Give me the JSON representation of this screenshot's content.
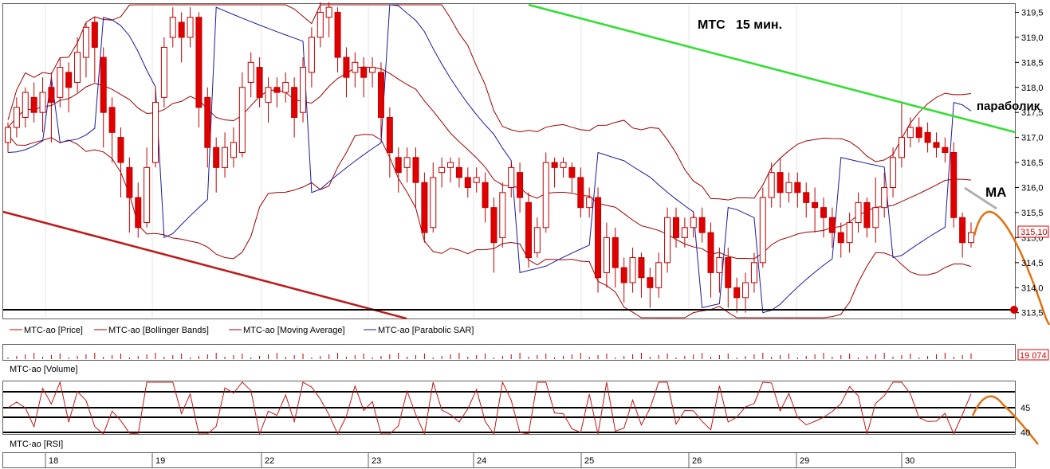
{
  "chart_data": {
    "type": "candlestick",
    "title": "МТС   15 мин.",
    "annotations": {
      "parabolic": "параболик",
      "ma": "МА"
    },
    "price_axis": {
      "ticks": [
        "319,5",
        "319,0",
        "318,5",
        "318,0",
        "317,5",
        "317,0",
        "316,5",
        "316,0",
        "315,5",
        "315,0",
        "314,5",
        "314,0",
        "313,5"
      ],
      "range": [
        313.4,
        319.65
      ],
      "last_price_label": "315,10",
      "last_price": 315.1,
      "support_level": 313.5
    },
    "legend": [
      {
        "name": "МТС-ао [Price]",
        "color": "#d40000"
      },
      {
        "name": "МТС-ао [Bollinger Bands]",
        "color": "#a00000"
      },
      {
        "name": "МТС-ао [Moving Average]",
        "color": "#a00000"
      },
      {
        "name": "МТС-ао [Parabolic SAR]",
        "color": "#1a1aa0"
      }
    ],
    "volume": {
      "label": "МТС-ао [Volume]",
      "last_label": "19 074"
    },
    "rsi": {
      "label": "МТС-ао [RSI]",
      "ticks": [
        "45",
        "40"
      ]
    },
    "x_axis": {
      "labels": [
        "18",
        "19",
        "22",
        "23",
        "24",
        "25",
        "26",
        "29",
        "30"
      ]
    },
    "candles": [
      [
        316.9,
        317.2,
        316.7,
        317.3
      ],
      [
        317.2,
        317.6,
        317.0,
        317.8
      ],
      [
        317.4,
        317.9,
        317.2,
        318.0
      ],
      [
        317.8,
        317.5,
        317.3,
        318.1
      ],
      [
        317.5,
        317.9,
        317.1,
        318.2
      ],
      [
        318.0,
        317.7,
        316.9,
        318.3
      ],
      [
        317.8,
        318.4,
        317.6,
        318.6
      ],
      [
        318.3,
        318.0,
        317.5,
        318.5
      ],
      [
        318.1,
        318.7,
        317.9,
        319.0
      ],
      [
        318.6,
        319.2,
        318.2,
        319.3
      ],
      [
        319.3,
        318.8,
        318.1,
        319.4
      ],
      [
        318.6,
        317.5,
        316.8,
        318.8
      ],
      [
        317.6,
        317.1,
        316.5,
        317.8
      ],
      [
        317.0,
        316.5,
        315.8,
        317.2
      ],
      [
        316.4,
        315.8,
        315.1,
        316.6
      ],
      [
        315.8,
        315.2,
        315.0,
        316.1
      ],
      [
        315.3,
        316.4,
        315.2,
        316.8
      ],
      [
        316.5,
        317.7,
        316.4,
        318.0
      ],
      [
        317.8,
        318.8,
        317.6,
        319.0
      ],
      [
        319.0,
        319.4,
        318.8,
        319.6
      ],
      [
        319.3,
        319.0,
        318.5,
        319.5
      ],
      [
        319.0,
        319.4,
        318.8,
        319.6
      ],
      [
        319.4,
        317.6,
        317.2,
        319.5
      ],
      [
        317.8,
        316.8,
        316.4,
        318.0
      ],
      [
        316.8,
        316.4,
        315.9,
        317.0
      ],
      [
        316.4,
        316.8,
        316.2,
        317.1
      ],
      [
        316.6,
        316.9,
        316.4,
        317.2
      ],
      [
        316.7,
        318.0,
        316.6,
        318.3
      ],
      [
        318.1,
        318.5,
        317.8,
        318.7
      ],
      [
        318.4,
        317.8,
        317.6,
        318.6
      ],
      [
        317.7,
        318.0,
        317.3,
        318.2
      ],
      [
        318.0,
        317.9,
        317.6,
        318.2
      ],
      [
        317.9,
        318.1,
        317.7,
        318.3
      ],
      [
        318.0,
        317.4,
        317.0,
        318.2
      ],
      [
        317.5,
        318.4,
        317.3,
        318.6
      ],
      [
        318.3,
        319.0,
        318.0,
        319.2
      ],
      [
        319.0,
        319.5,
        318.8,
        319.7
      ],
      [
        319.4,
        319.6,
        319.0,
        319.7
      ],
      [
        319.5,
        318.6,
        318.3,
        319.6
      ],
      [
        318.6,
        318.2,
        317.8,
        318.8
      ],
      [
        318.3,
        318.5,
        318.0,
        318.7
      ],
      [
        318.4,
        318.2,
        317.8,
        318.6
      ],
      [
        318.3,
        318.4,
        318.0,
        318.6
      ],
      [
        318.3,
        317.4,
        317.0,
        318.5
      ],
      [
        317.4,
        316.7,
        316.2,
        317.6
      ],
      [
        316.6,
        316.3,
        315.9,
        316.8
      ],
      [
        316.4,
        316.6,
        316.1,
        316.8
      ],
      [
        316.6,
        316.1,
        315.6,
        316.8
      ],
      [
        316.1,
        315.1,
        314.9,
        316.3
      ],
      [
        315.2,
        316.2,
        315.1,
        316.5
      ],
      [
        316.3,
        316.4,
        316.0,
        316.6
      ],
      [
        316.4,
        316.5,
        316.1,
        316.6
      ],
      [
        316.4,
        316.2,
        316.0,
        316.6
      ],
      [
        316.2,
        316.0,
        315.8,
        316.4
      ],
      [
        316.1,
        316.2,
        315.9,
        316.4
      ],
      [
        316.1,
        315.6,
        315.3,
        316.3
      ],
      [
        315.6,
        314.9,
        314.3,
        315.8
      ],
      [
        315.0,
        315.9,
        314.8,
        316.1
      ],
      [
        316.0,
        316.4,
        315.8,
        316.5
      ],
      [
        316.3,
        315.8,
        315.5,
        316.5
      ],
      [
        315.7,
        314.6,
        314.4,
        315.9
      ],
      [
        314.7,
        315.2,
        314.6,
        315.4
      ],
      [
        315.2,
        316.5,
        315.1,
        316.7
      ],
      [
        316.5,
        316.4,
        316.0,
        316.6
      ],
      [
        316.4,
        316.5,
        316.2,
        316.6
      ],
      [
        316.4,
        316.2,
        315.9,
        316.5
      ],
      [
        316.2,
        315.6,
        315.4,
        316.4
      ],
      [
        315.6,
        315.8,
        315.4,
        316.0
      ],
      [
        315.8,
        314.2,
        313.9,
        316.0
      ],
      [
        314.3,
        315.0,
        314.0,
        315.3
      ],
      [
        315.0,
        314.4,
        314.0,
        315.2
      ],
      [
        314.4,
        314.1,
        313.7,
        314.6
      ],
      [
        314.1,
        314.6,
        313.9,
        314.8
      ],
      [
        314.6,
        314.2,
        313.8,
        314.7
      ],
      [
        314.2,
        314.0,
        313.6,
        314.4
      ],
      [
        314.0,
        314.5,
        313.8,
        314.7
      ],
      [
        314.5,
        315.4,
        314.3,
        315.6
      ],
      [
        315.4,
        315.0,
        314.8,
        315.6
      ],
      [
        315.0,
        315.2,
        314.8,
        315.4
      ],
      [
        315.2,
        315.4,
        315.0,
        315.5
      ],
      [
        315.4,
        315.1,
        314.9,
        315.6
      ],
      [
        315.1,
        314.3,
        313.8,
        315.3
      ],
      [
        314.3,
        314.6,
        313.9,
        314.8
      ],
      [
        314.6,
        314.0,
        313.6,
        314.8
      ],
      [
        314.0,
        313.8,
        313.5,
        314.2
      ],
      [
        313.8,
        314.1,
        313.5,
        314.3
      ],
      [
        314.1,
        314.5,
        313.9,
        314.7
      ],
      [
        314.5,
        315.8,
        314.4,
        316.0
      ],
      [
        315.8,
        316.3,
        315.6,
        316.5
      ],
      [
        316.3,
        315.9,
        315.6,
        316.6
      ],
      [
        315.9,
        316.1,
        315.7,
        316.3
      ],
      [
        316.1,
        315.9,
        315.6,
        316.3
      ],
      [
        315.9,
        315.7,
        315.4,
        316.1
      ],
      [
        315.7,
        315.6,
        315.1,
        316.0
      ],
      [
        315.6,
        315.4,
        315.0,
        315.8
      ],
      [
        315.4,
        315.1,
        314.8,
        315.6
      ],
      [
        315.1,
        314.9,
        314.6,
        315.3
      ],
      [
        314.9,
        315.3,
        314.7,
        315.5
      ],
      [
        315.3,
        315.7,
        315.1,
        315.9
      ],
      [
        315.7,
        315.2,
        315.0,
        315.8
      ],
      [
        315.2,
        315.6,
        314.9,
        316.2
      ],
      [
        315.6,
        316.0,
        315.4,
        316.3
      ],
      [
        316.0,
        316.6,
        315.8,
        316.8
      ],
      [
        316.6,
        317.0,
        316.4,
        317.7
      ],
      [
        317.0,
        317.2,
        316.8,
        317.4
      ],
      [
        317.2,
        317.0,
        316.9,
        317.4
      ],
      [
        317.1,
        316.9,
        316.7,
        317.3
      ],
      [
        316.9,
        316.8,
        316.6,
        317.1
      ],
      [
        316.8,
        316.7,
        316.5,
        317.0
      ],
      [
        316.7,
        315.4,
        315.2,
        316.9
      ],
      [
        315.4,
        314.9,
        314.6,
        315.5
      ],
      [
        314.9,
        315.1,
        314.8,
        315.3
      ]
    ]
  }
}
